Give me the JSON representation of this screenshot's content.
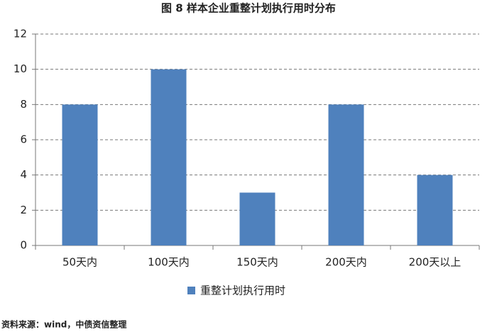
{
  "chart_data": {
    "type": "bar",
    "title": "图 8  样本企业重整计划执行用时分布",
    "categories": [
      "50天内",
      "100天内",
      "150天内",
      "200天内",
      "200天以上"
    ],
    "series": [
      {
        "name": "重整计划执行用时",
        "color": "#4f81bd",
        "values": [
          8,
          10,
          3,
          8,
          4
        ]
      }
    ],
    "ylim": [
      0,
      12
    ],
    "yticks": [
      0,
      2,
      4,
      6,
      8,
      10,
      12
    ],
    "grid": true,
    "legend": "bottom",
    "source": "资料来源：wind，中债资信整理"
  }
}
